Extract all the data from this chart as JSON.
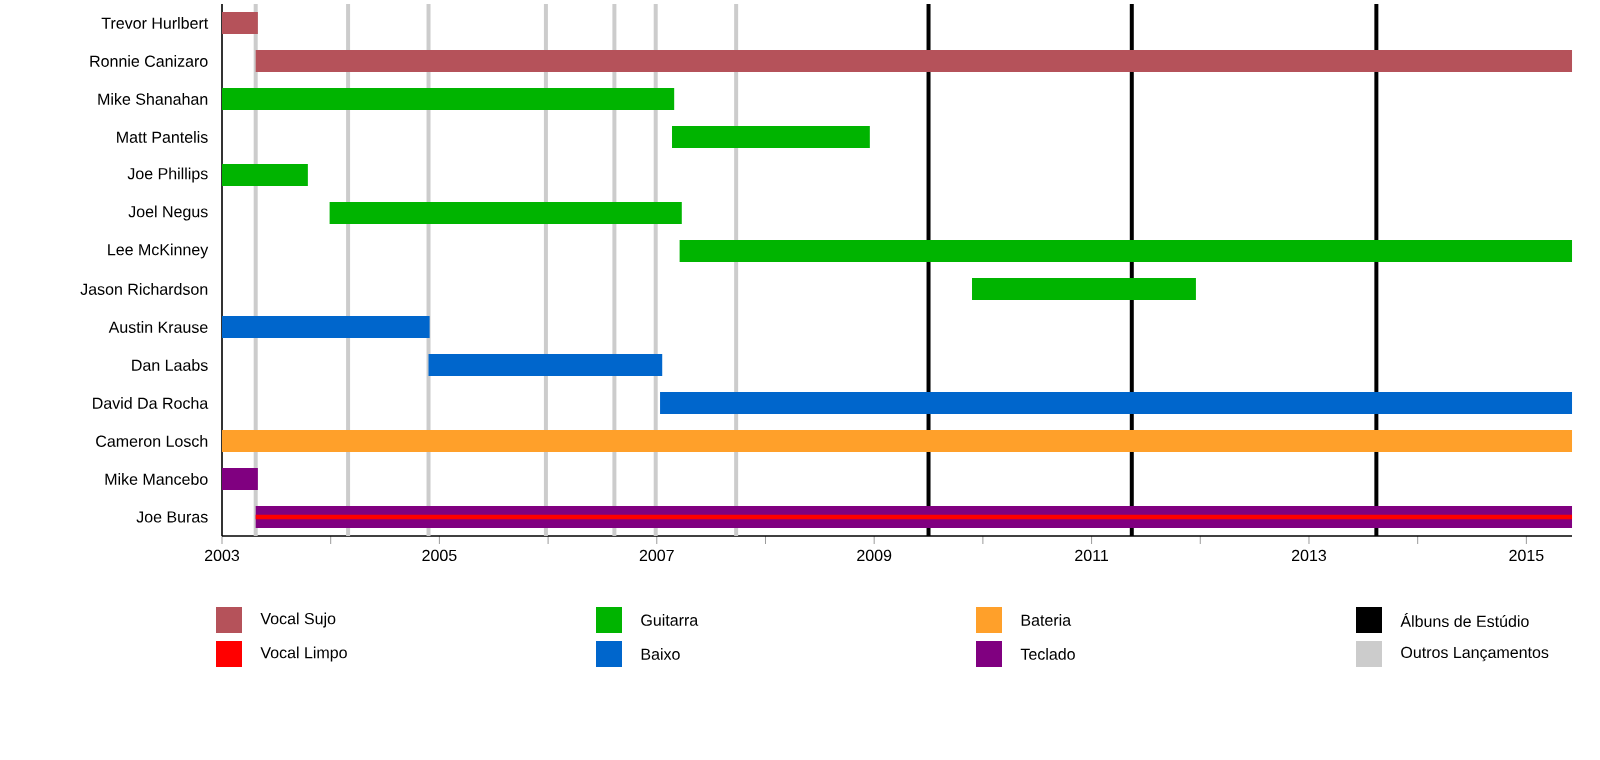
{
  "chart_data": {
    "type": "bar",
    "orientation": "horizontal",
    "categories": [
      "Trevor Hurlbert",
      "Ronnie Canizaro",
      "Mike Shanahan",
      "Matt Pantelis",
      "Joe Phillips",
      "Joel Negus",
      "Lee McKinney",
      "Jason Richardson",
      "Austin Krause",
      "Dan Laabs",
      "David Da Rocha",
      "Cameron Losch",
      "Mike Mancebo",
      "Joe Buras"
    ],
    "series": [
      {
        "name": "Vocal Sujo",
        "color": "#b5525a",
        "base": [
          2003,
          2003.31,
          null,
          null,
          null,
          null,
          null,
          null,
          null,
          null,
          null,
          null,
          null,
          null
        ],
        "values": [
          0.33,
          12.11,
          null,
          null,
          null,
          null,
          null,
          null,
          null,
          null,
          null,
          null,
          null,
          null
        ]
      },
      {
        "name": "Vocal Limpo",
        "color": "#ff0000",
        "base": [
          null,
          null,
          null,
          null,
          null,
          null,
          null,
          null,
          null,
          null,
          null,
          null,
          null,
          2003.31
        ],
        "values": [
          null,
          null,
          null,
          null,
          null,
          null,
          null,
          null,
          null,
          null,
          null,
          null,
          null,
          12.11
        ]
      },
      {
        "name": "Guitarra",
        "color": "#00b400",
        "base": [
          null,
          null,
          2003,
          2007.14,
          2003,
          2003.99,
          2007.21,
          2009.9,
          null,
          null,
          null,
          null,
          null,
          null
        ],
        "values": [
          null,
          null,
          4.16,
          1.82,
          0.79,
          3.24,
          8.21,
          2.06,
          null,
          null,
          null,
          null,
          null,
          null
        ]
      },
      {
        "name": "Baixo",
        "color": "#0066cc",
        "base": [
          null,
          null,
          null,
          null,
          null,
          null,
          null,
          null,
          2003,
          2004.9,
          2007.03,
          null,
          null,
          null
        ],
        "values": [
          null,
          null,
          null,
          null,
          null,
          null,
          null,
          null,
          1.91,
          2.15,
          8.39,
          null,
          null,
          null
        ]
      },
      {
        "name": "Bateria",
        "color": "#ffa02a",
        "base": [
          null,
          null,
          null,
          null,
          null,
          null,
          null,
          null,
          null,
          null,
          null,
          2003,
          null,
          null
        ],
        "values": [
          null,
          null,
          null,
          null,
          null,
          null,
          null,
          null,
          null,
          null,
          null,
          12.42,
          null,
          null
        ]
      },
      {
        "name": "Teclado",
        "color": "#800080",
        "base": [
          null,
          null,
          null,
          null,
          null,
          null,
          null,
          null,
          null,
          null,
          null,
          null,
          2003,
          2003.31
        ],
        "values": [
          null,
          null,
          null,
          null,
          null,
          null,
          null,
          null,
          null,
          null,
          null,
          null,
          0.33,
          12.11
        ]
      }
    ],
    "xlim": [
      2003,
      2015.42
    ],
    "xticks": [
      2003,
      {
        "value": 2004,
        "label": null
      },
      2005,
      {
        "value": 2006,
        "label": null
      },
      2007,
      {
        "value": 2008,
        "label": null
      },
      2009,
      {
        "value": 2010,
        "label": null
      },
      2011,
      {
        "value": 2012,
        "label": null
      },
      2013,
      {
        "value": 2014,
        "label": null
      },
      2015
    ],
    "ref_lines": [
      {
        "axis": "x",
        "value": 2009.5,
        "label": "Álbuns de Estúdio",
        "color": "#000000"
      },
      {
        "axis": "x",
        "value": 2011.37,
        "color": "#000000"
      },
      {
        "axis": "x",
        "value": 2013.62,
        "color": "#000000"
      },
      {
        "axis": "x",
        "value": 2003.31,
        "label": "Outros Lançamentos",
        "color": "#cccccc"
      },
      {
        "axis": "x",
        "value": 2004.16,
        "color": "#cccccc"
      },
      {
        "axis": "x",
        "value": 2004.9,
        "color": "#cccccc"
      },
      {
        "axis": "x",
        "value": 2005.98,
        "color": "#cccccc"
      },
      {
        "axis": "x",
        "value": 2006.61,
        "color": "#cccccc"
      },
      {
        "axis": "x",
        "value": 2006.99,
        "color": "#cccccc"
      },
      {
        "axis": "x",
        "value": 2007.73,
        "color": "#cccccc"
      }
    ],
    "legend": "bottom"
  }
}
